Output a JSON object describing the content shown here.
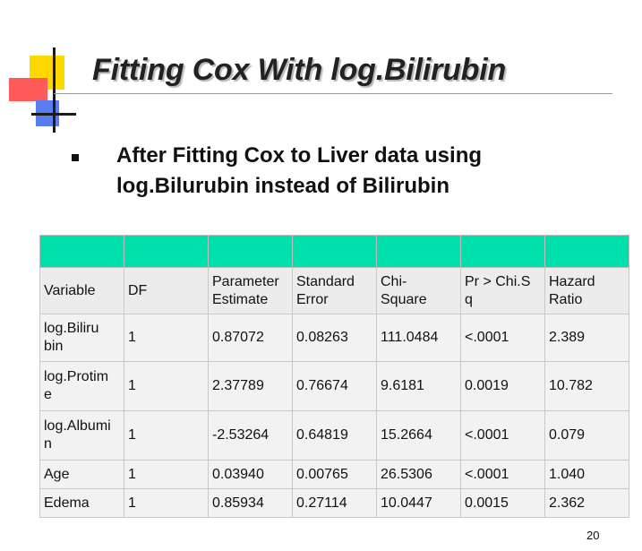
{
  "slide": {
    "title": "Fitting Cox With log.Bilirubin",
    "bullet": {
      "line1": "After Fitting Cox to Liver data using",
      "line2": "log.Bilurubin instead of Bilirubin"
    },
    "page_number": "20"
  },
  "table": {
    "headers": {
      "variable": "Variable",
      "df": "DF",
      "param_line1": "Parameter",
      "param_line2": "Estimate",
      "stderr_line1": "Standard",
      "stderr_line2": "Error",
      "chisq_line1": "Chi-",
      "chisq_line2": "Square",
      "pr_line1": "Pr > Chi.S",
      "pr_line2": "q",
      "hr_line1": "Hazard",
      "hr_line2": "Ratio"
    },
    "rows": [
      {
        "var_line1": "log.Biliru",
        "var_line2": "bin",
        "df": "1",
        "est": "0.87072",
        "se": "0.08263",
        "chisq": "111.0484",
        "p": "<.0001",
        "hr": "2.389"
      },
      {
        "var_line1": "log.Protim",
        "var_line2": "e",
        "df": "1",
        "est": "2.37789",
        "se": "0.76674",
        "chisq": "9.6181",
        "p": "0.0019",
        "hr": "10.782"
      },
      {
        "var_line1": "log.Albumi",
        "var_line2": "n",
        "df": "1",
        "est": "-2.53264",
        "se": "0.64819",
        "chisq": "15.2664",
        "p": "<.0001",
        "hr": "0.079"
      },
      {
        "var_line1": "Age",
        "var_line2": "",
        "df": "1",
        "est": "0.03940",
        "se": "0.00765",
        "chisq": "26.5306",
        "p": "<.0001",
        "hr": "1.040"
      },
      {
        "var_line1": "Edema",
        "var_line2": "",
        "df": "1",
        "est": "0.85934",
        "se": "0.27114",
        "chisq": "10.0447",
        "p": "0.0015",
        "hr": "2.362"
      }
    ]
  }
}
